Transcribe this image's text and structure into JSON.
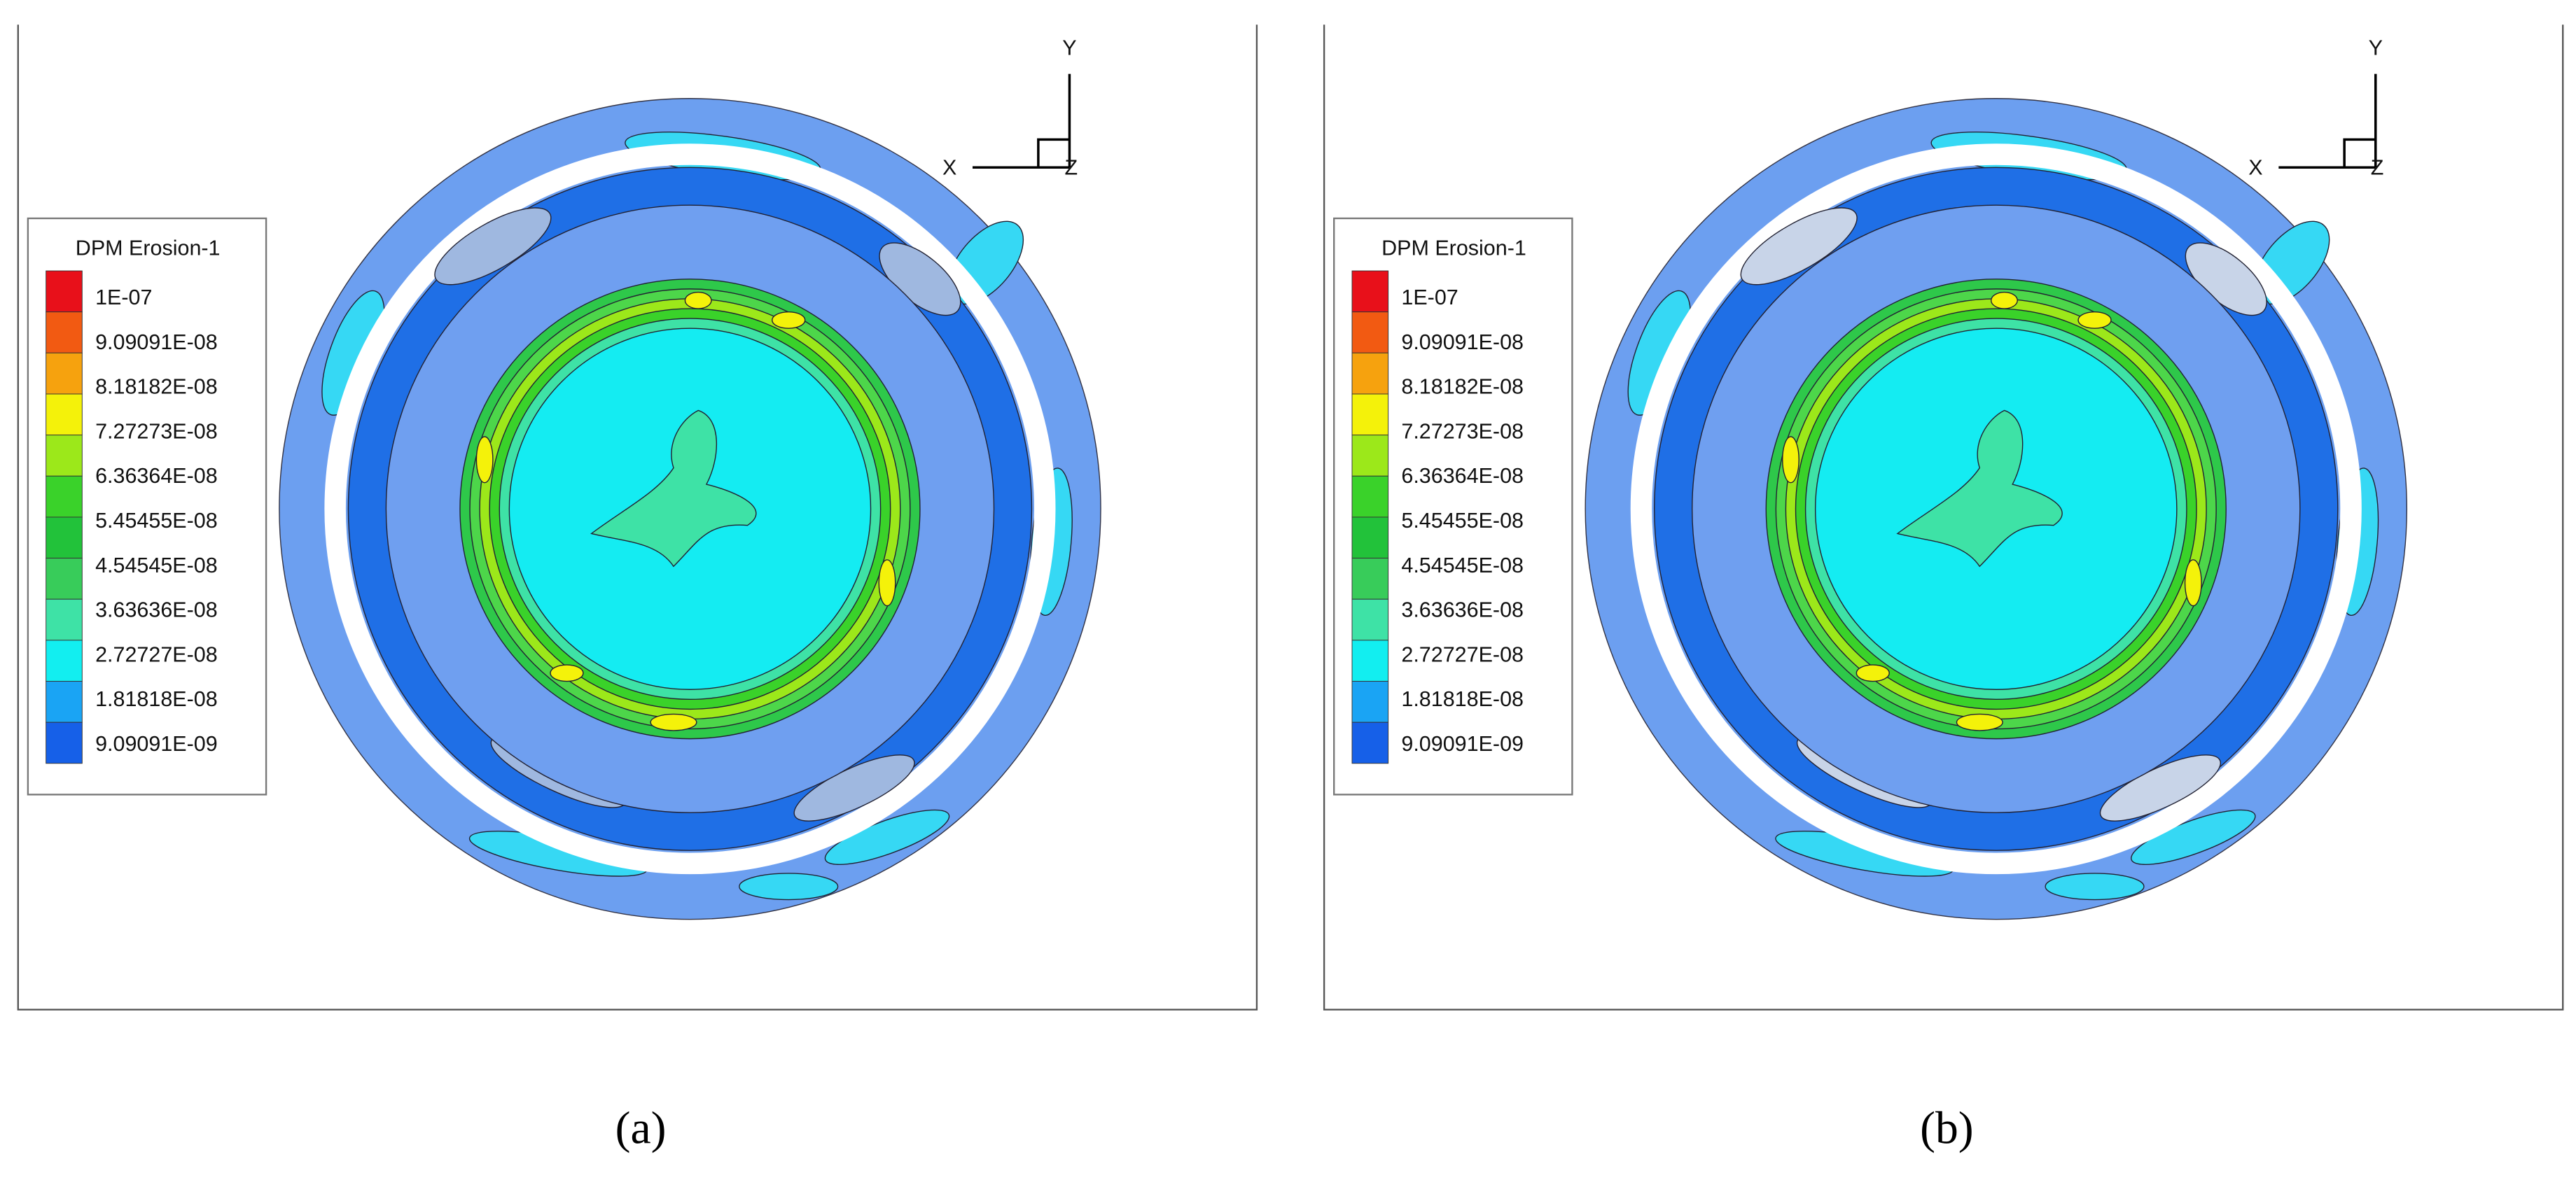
{
  "panels": [
    {
      "legend": {
        "title": "DPM Erosion-1",
        "levels": [
          "1E-07",
          "9.09091E-08",
          "8.18182E-08",
          "7.27273E-08",
          "6.36364E-08",
          "5.45455E-08",
          "4.54545E-08",
          "3.63636E-08",
          "2.72727E-08",
          "1.81818E-08",
          "9.09091E-09"
        ]
      },
      "axes": {
        "x": "X",
        "y": "Y",
        "z": "Z"
      },
      "caption": "(a)"
    },
    {
      "legend": {
        "title": "DPM Erosion-1",
        "levels": [
          "1E-07",
          "9.09091E-08",
          "8.18182E-08",
          "7.27273E-08",
          "6.36364E-08",
          "5.45455E-08",
          "4.54545E-08",
          "3.63636E-08",
          "2.72727E-08",
          "1.81818E-08",
          "9.09091E-09"
        ]
      },
      "axes": {
        "x": "X",
        "y": "Y",
        "z": "Z"
      },
      "caption": "(b)"
    }
  ]
}
